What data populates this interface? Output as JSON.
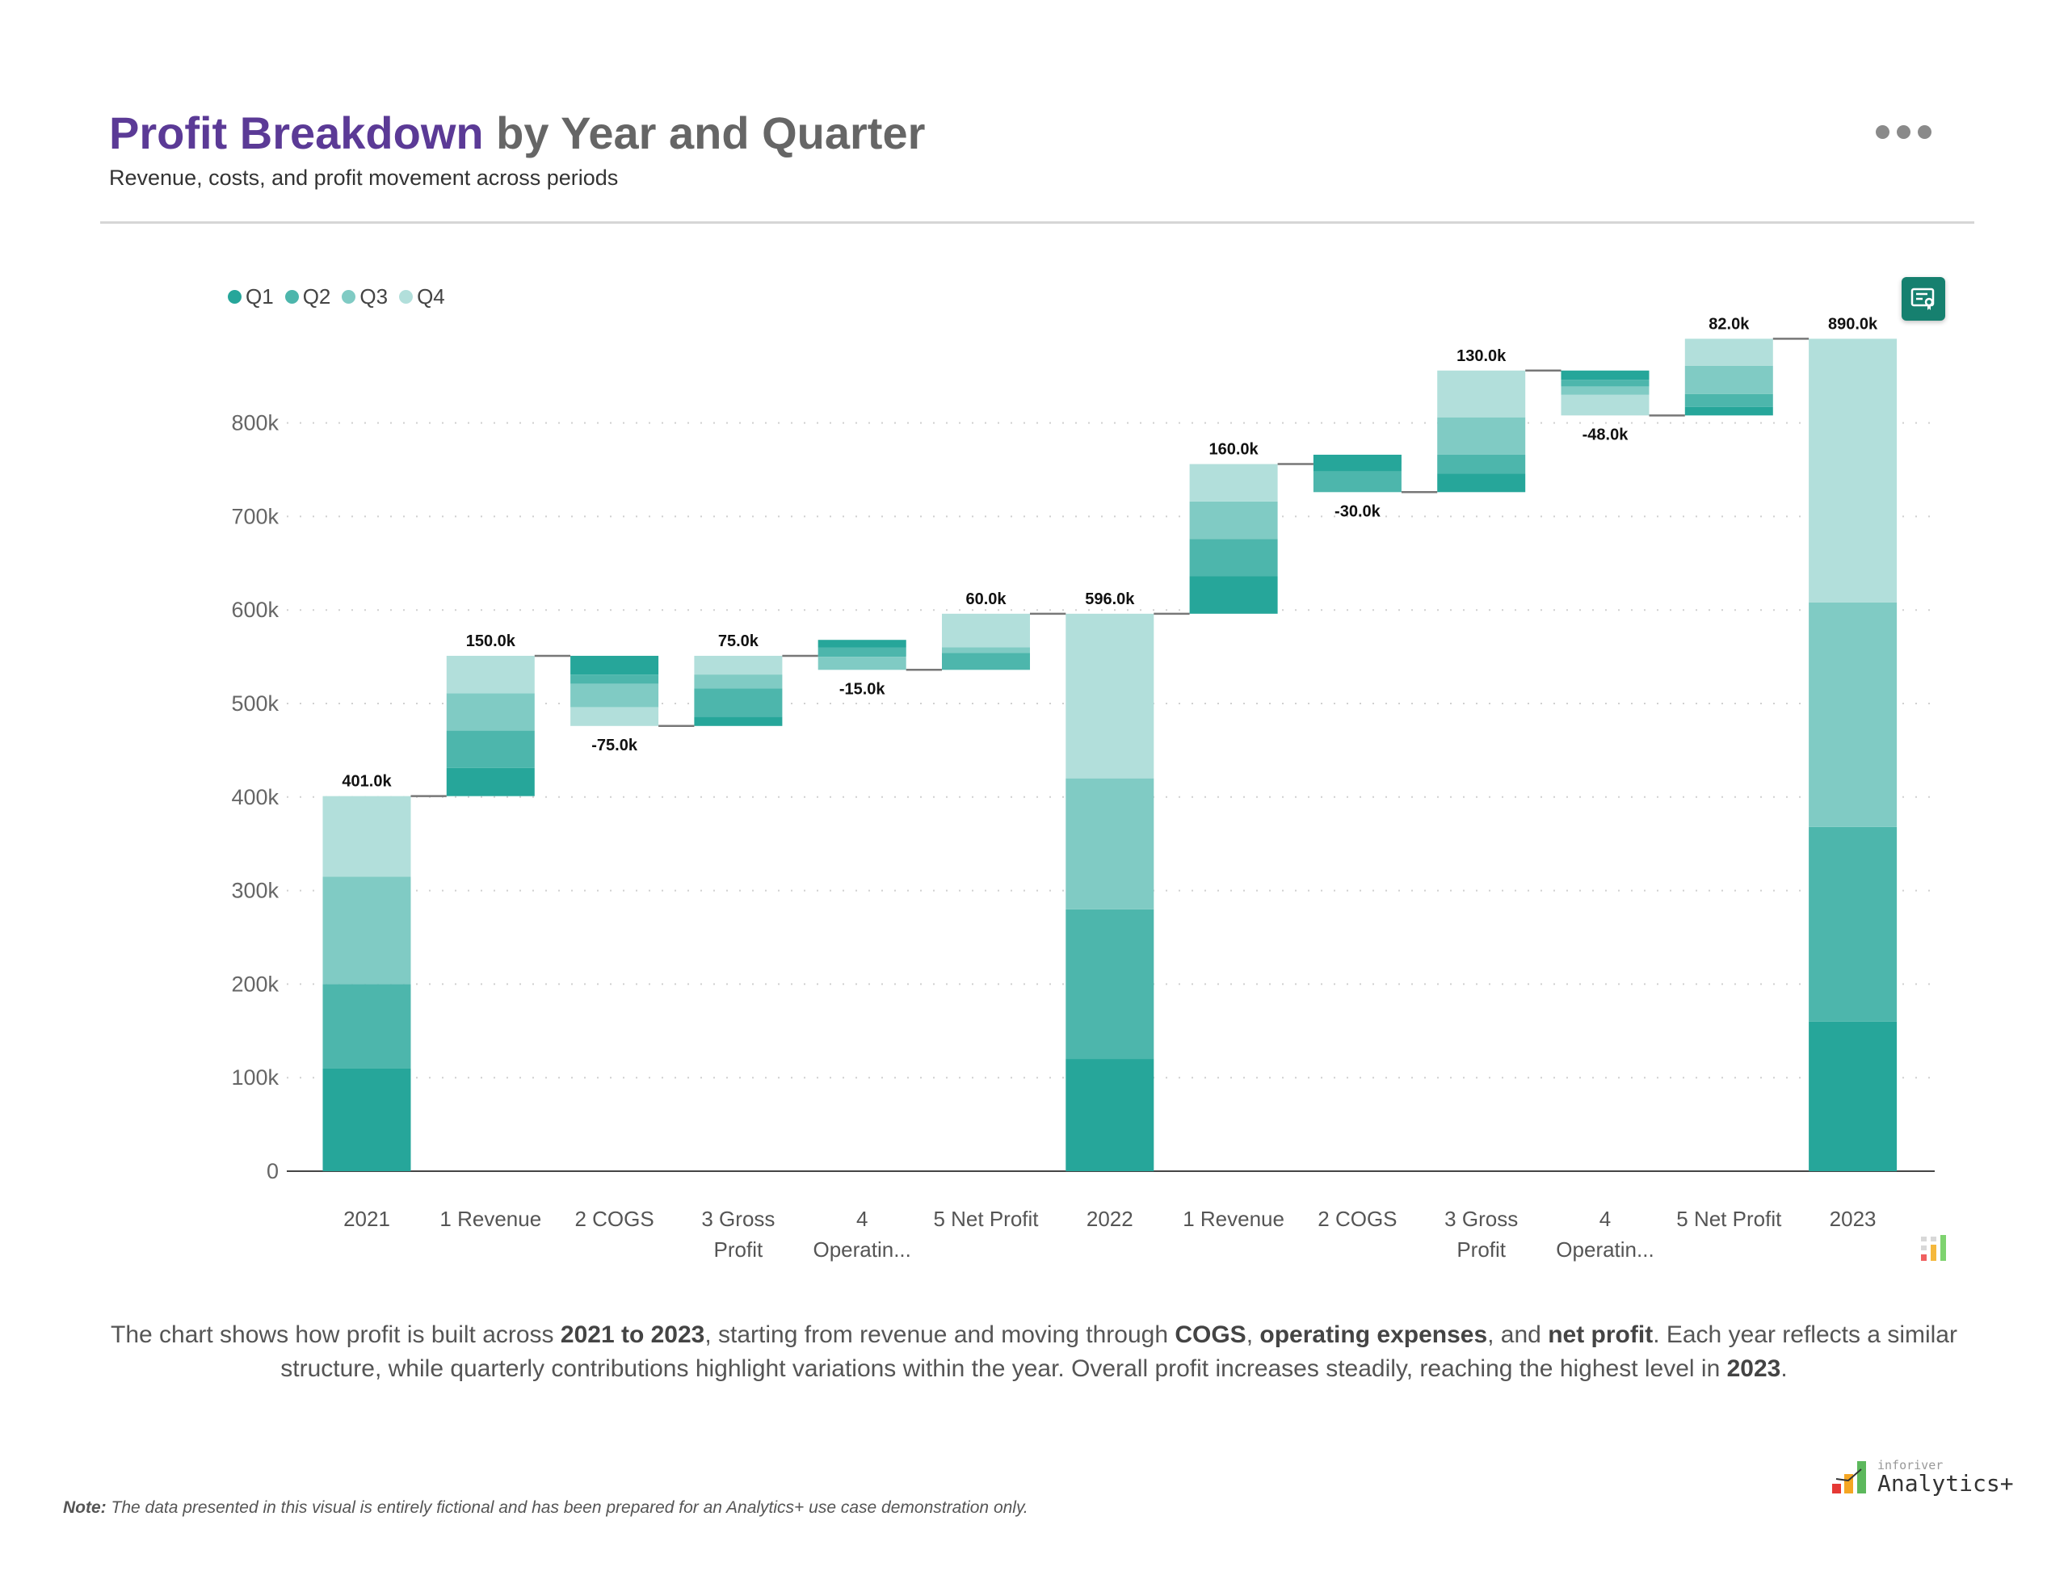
{
  "header": {
    "title_accent": "Profit Breakdown",
    "title_rest": " by Year and Quarter",
    "subtitle": "Revenue, costs, and profit movement across periods",
    "menu_icon": "more-horizontal-icon"
  },
  "colors": {
    "Q1": "#26a69a",
    "Q2": "#4db6ac",
    "Q3": "#80cbc4",
    "Q4": "#b2dfdb",
    "title_accent": "#5b3a96"
  },
  "chart_data": {
    "type": "waterfall-stacked",
    "legend": [
      "Q1",
      "Q2",
      "Q3",
      "Q4"
    ],
    "legend_position": "top-left",
    "ylim": [
      0,
      900000
    ],
    "yticks": [
      0,
      100000,
      200000,
      300000,
      400000,
      500000,
      600000,
      700000,
      800000
    ],
    "ytick_labels": [
      "0",
      "100k",
      "200k",
      "300k",
      "400k",
      "500k",
      "600k",
      "700k",
      "800k"
    ],
    "grid": "horizontal-dotted",
    "categories": [
      {
        "label": "2021",
        "kind": "total",
        "quarters": [
          110000,
          90000,
          115000,
          86000
        ],
        "data_label": "401.0k"
      },
      {
        "label": "1 Revenue",
        "kind": "delta",
        "quarters": [
          30000,
          40000,
          40000,
          40000
        ],
        "data_label": "150.0k"
      },
      {
        "label": "2 COGS",
        "kind": "delta",
        "quarters": [
          -20000,
          -10000,
          -25000,
          -20000
        ],
        "data_label": "-75.0k"
      },
      {
        "label": "3 Gross\nProfit",
        "kind": "delta",
        "quarters": [
          10000,
          30000,
          15000,
          20000
        ],
        "data_label": "75.0k"
      },
      {
        "label": "4\nOperatin...",
        "kind": "delta",
        "quarters": [
          -8000,
          -10000,
          -14000,
          17000
        ],
        "data_label": "-15.0k"
      },
      {
        "label": "5 Net Profit",
        "kind": "delta",
        "quarters": [
          0,
          18000,
          6000,
          36000
        ],
        "data_label": "60.0k"
      },
      {
        "label": "2022",
        "kind": "total",
        "quarters": [
          120000,
          160000,
          140000,
          176000
        ],
        "data_label": "596.0k"
      },
      {
        "label": "1 Revenue",
        "kind": "delta",
        "quarters": [
          40000,
          40000,
          40000,
          40000
        ],
        "data_label": "160.0k"
      },
      {
        "label": "2 COGS",
        "kind": "delta",
        "quarters": [
          -18000,
          -22000,
          0,
          10000
        ],
        "data_label": "-30.0k"
      },
      {
        "label": "3 Gross\nProfit",
        "kind": "delta",
        "quarters": [
          20000,
          20000,
          40000,
          50000
        ],
        "data_label": "130.0k"
      },
      {
        "label": "4\nOperatin...",
        "kind": "delta",
        "quarters": [
          -10000,
          -7000,
          -9000,
          -22000
        ],
        "data_label": "-48.0k"
      },
      {
        "label": "5 Net Profit",
        "kind": "delta",
        "quarters": [
          9000,
          14000,
          30000,
          29000
        ],
        "data_label": "82.0k"
      },
      {
        "label": "2023",
        "kind": "total",
        "quarters": [
          160000,
          208000,
          240000,
          282000
        ],
        "data_label": "890.0k"
      }
    ]
  },
  "summary": [
    {
      "t": "The chart shows how profit is built across ",
      "b": false
    },
    {
      "t": "2021 to 2023",
      "b": true
    },
    {
      "t": ", starting from revenue and moving through ",
      "b": false
    },
    {
      "t": "COGS",
      "b": true
    },
    {
      "t": ", ",
      "b": false
    },
    {
      "t": "operating expenses",
      "b": true
    },
    {
      "t": ", and ",
      "b": false
    },
    {
      "t": "net profit",
      "b": true
    },
    {
      "t": ". Each year reflects a similar structure, while quarterly contributions highlight variations within the year. Overall profit increases steadily, reaching the highest level in ",
      "b": false
    },
    {
      "t": "2023",
      "b": true
    },
    {
      "t": ".",
      "b": false
    }
  ],
  "note": {
    "label": "Note:",
    "text": " The data presented in this visual is entirely fictional and has been prepared for an Analytics+ use case demonstration only."
  },
  "logo": {
    "small": "inforiver",
    "big": "Analytics+"
  }
}
